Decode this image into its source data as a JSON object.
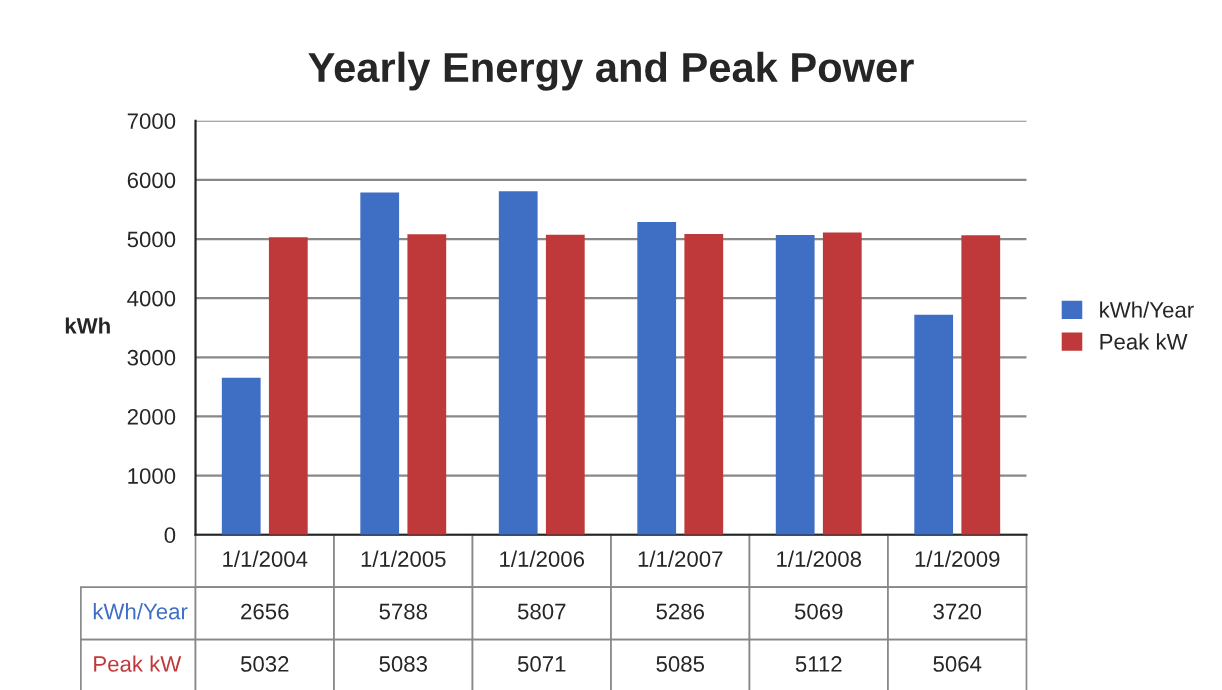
{
  "chart_data": {
    "type": "bar",
    "title": "Yearly Energy and Peak Power",
    "ylabel": "kWh",
    "categories": [
      "1/1/2004",
      "1/1/2005",
      "1/1/2006",
      "1/1/2007",
      "1/1/2008",
      "1/1/2009"
    ],
    "series": [
      {
        "name": "kWh/Year",
        "color": "#3f6fc4",
        "values": [
          2656,
          5788,
          5807,
          5286,
          5069,
          3720
        ]
      },
      {
        "name": "Peak kW",
        "color": "#c0393a",
        "values": [
          5032,
          5083,
          5071,
          5085,
          5112,
          5064
        ]
      }
    ],
    "ylim": [
      0,
      7000
    ],
    "yticks": [
      0,
      1000,
      2000,
      3000,
      4000,
      5000,
      6000,
      7000
    ],
    "grid": "y",
    "legend": "right",
    "data_labels": true
  }
}
